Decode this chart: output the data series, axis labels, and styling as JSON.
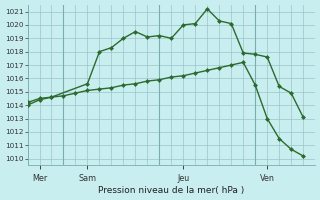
{
  "bg_color": "#c8eef0",
  "grid_color": "#b8d8da",
  "grid_color_major": "#9cc4c8",
  "line_color": "#2d6a2d",
  "xlabel": "Pression niveau de la mer( hPa )",
  "ylim": [
    1009.5,
    1021.5
  ],
  "yticks": [
    1010,
    1011,
    1012,
    1013,
    1014,
    1015,
    1016,
    1017,
    1018,
    1019,
    1020,
    1021
  ],
  "day_labels": [
    "Mer",
    "Sam",
    "Jeu",
    "Ven"
  ],
  "vline_x": [
    3,
    11,
    19
  ],
  "xlim": [
    0,
    24
  ],
  "xtick_positions": [
    1,
    5,
    13,
    20
  ],
  "series1_x": [
    0,
    1,
    2,
    5,
    6,
    7,
    8,
    9,
    10,
    11,
    12,
    13,
    14,
    15,
    16,
    17,
    18,
    19,
    20,
    21,
    22,
    23
  ],
  "series1_y": [
    1014.0,
    1014.4,
    1014.6,
    1015.6,
    1018.0,
    1018.3,
    1019.0,
    1019.5,
    1019.1,
    1019.2,
    1019.0,
    1020.0,
    1020.1,
    1021.2,
    1020.3,
    1020.1,
    1017.9,
    1017.8,
    1017.6,
    1015.4,
    1014.9,
    1013.1
  ],
  "series2_x": [
    0,
    1,
    2,
    3,
    4,
    5,
    6,
    7,
    8,
    9,
    10,
    11,
    12,
    13,
    14,
    15,
    16,
    17,
    18,
    19,
    20,
    21,
    22,
    23
  ],
  "series2_y": [
    1014.2,
    1014.5,
    1014.6,
    1014.7,
    1014.9,
    1015.1,
    1015.2,
    1015.3,
    1015.5,
    1015.6,
    1015.8,
    1015.9,
    1016.1,
    1016.2,
    1016.4,
    1016.6,
    1016.8,
    1017.0,
    1017.2,
    1015.5,
    1013.0,
    1011.5,
    1010.7,
    1010.2
  ],
  "marker_size": 2.5,
  "linewidth": 1.0
}
